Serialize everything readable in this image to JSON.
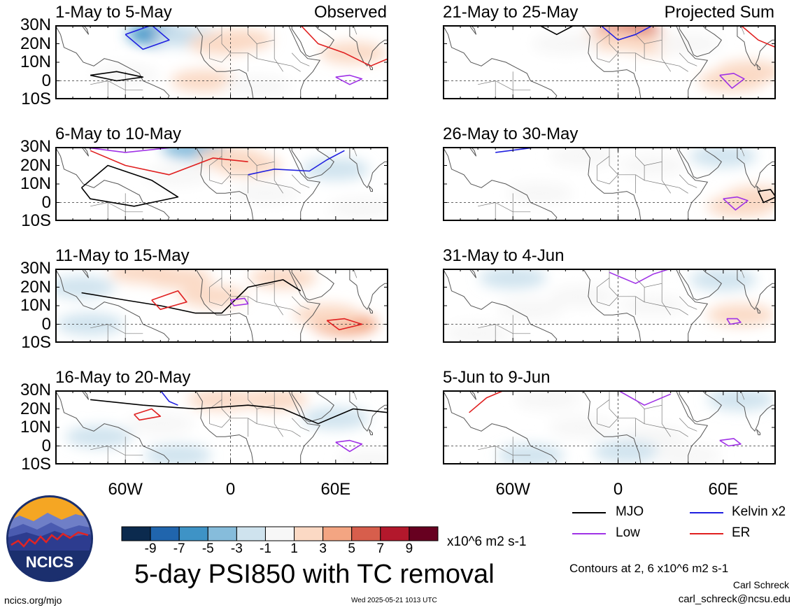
{
  "panels": [
    {
      "id": "p1",
      "title": "1-May to 5-May",
      "corner_label": "Observed",
      "col": 0,
      "row": 0,
      "shade": [
        {
          "lon": -40,
          "lat": 25,
          "v": -5
        },
        {
          "lon": -25,
          "lat": 24,
          "v": -2
        },
        {
          "lon": -5,
          "lat": 20,
          "v": 2
        },
        {
          "lon": 5,
          "lat": 22,
          "v": 3
        },
        {
          "lon": -15,
          "lat": 0,
          "v": 3
        },
        {
          "lon": -60,
          "lat": 3,
          "v": 1
        },
        {
          "lon": 70,
          "lat": 15,
          "v": 3
        },
        {
          "lon": 15,
          "lat": -3,
          "v": 1
        }
      ],
      "contours": [
        {
          "type": "MJO",
          "pts": [
            [
              -80,
              3
            ],
            [
              -65,
              5
            ],
            [
              -50,
              2
            ],
            [
              -65,
              0
            ],
            [
              -80,
              3
            ]
          ]
        },
        {
          "type": "Kelvin",
          "pts": [
            [
              -60,
              25
            ],
            [
              -45,
              30
            ],
            [
              -35,
              22
            ],
            [
              -50,
              17
            ],
            [
              -60,
              25
            ]
          ]
        },
        {
          "type": "ER",
          "pts": [
            [
              40,
              30
            ],
            [
              50,
              20
            ],
            [
              65,
              15
            ],
            [
              80,
              8
            ],
            [
              90,
              12
            ]
          ]
        },
        {
          "type": "Low",
          "pts": [
            [
              60,
              2
            ],
            [
              68,
              3
            ],
            [
              75,
              1
            ],
            [
              68,
              -2
            ],
            [
              60,
              2
            ]
          ]
        }
      ]
    },
    {
      "id": "p2",
      "title": "6-May to 10-May",
      "corner_label": "",
      "col": 0,
      "row": 1,
      "shade": [
        {
          "lon": -20,
          "lat": 29,
          "v": -3
        },
        {
          "lon": 0,
          "lat": 24,
          "v": 3
        },
        {
          "lon": 10,
          "lat": 20,
          "v": 2
        },
        {
          "lon": -30,
          "lat": 15,
          "v": 1
        },
        {
          "lon": 60,
          "lat": 18,
          "v": -2
        },
        {
          "lon": 20,
          "lat": 5,
          "v": 1
        },
        {
          "lon": 75,
          "lat": -3,
          "v": 1
        }
      ],
      "contours": [
        {
          "type": "MJO",
          "pts": [
            [
              -85,
              8
            ],
            [
              -70,
              20
            ],
            [
              -45,
              12
            ],
            [
              -30,
              3
            ],
            [
              -55,
              -2
            ],
            [
              -80,
              2
            ],
            [
              -85,
              8
            ]
          ]
        },
        {
          "type": "ER",
          "pts": [
            [
              -80,
              28
            ],
            [
              -60,
              20
            ],
            [
              -35,
              15
            ],
            [
              -10,
              24
            ],
            [
              10,
              22
            ]
          ]
        },
        {
          "type": "Kelvin",
          "pts": [
            [
              10,
              15
            ],
            [
              25,
              18
            ],
            [
              45,
              17
            ],
            [
              55,
              23
            ],
            [
              65,
              28
            ]
          ]
        },
        {
          "type": "Low",
          "pts": [
            [
              -85,
              30
            ],
            [
              -60,
              27
            ],
            [
              -30,
              30
            ]
          ]
        }
      ]
    },
    {
      "id": "p3",
      "title": "11-May to 15-May",
      "corner_label": "",
      "col": 0,
      "row": 2,
      "shade": [
        {
          "lon": -50,
          "lat": 28,
          "v": 3
        },
        {
          "lon": -30,
          "lat": 25,
          "v": 3
        },
        {
          "lon": -10,
          "lat": 15,
          "v": 2
        },
        {
          "lon": 30,
          "lat": 25,
          "v": 2
        },
        {
          "lon": 65,
          "lat": 0,
          "v": 5
        },
        {
          "lon": 55,
          "lat": 5,
          "v": 2
        },
        {
          "lon": -80,
          "lat": 0,
          "v": -2
        },
        {
          "lon": -85,
          "lat": 20,
          "v": -1
        }
      ],
      "contours": [
        {
          "type": "MJO",
          "pts": [
            [
              -85,
              17
            ],
            [
              -60,
              13
            ],
            [
              -40,
              10
            ],
            [
              -20,
              6
            ],
            [
              -5,
              6
            ],
            [
              10,
              20
            ],
            [
              30,
              24
            ],
            [
              40,
              18
            ]
          ]
        },
        {
          "type": "ER",
          "pts": [
            [
              -45,
              13
            ],
            [
              -30,
              18
            ],
            [
              -25,
              12
            ],
            [
              -40,
              8
            ],
            [
              -45,
              13
            ]
          ]
        },
        {
          "type": "ER",
          "pts": [
            [
              55,
              2
            ],
            [
              65,
              3
            ],
            [
              75,
              0
            ],
            [
              62,
              -3
            ],
            [
              55,
              2
            ]
          ]
        },
        {
          "type": "Low",
          "pts": [
            [
              0,
              13
            ],
            [
              8,
              14
            ],
            [
              10,
              11
            ],
            [
              2,
              10
            ],
            [
              0,
              13
            ]
          ]
        }
      ]
    },
    {
      "id": "p4",
      "title": "16-May to 20-May",
      "corner_label": "",
      "col": 0,
      "row": 3,
      "shade": [
        {
          "lon": -5,
          "lat": 25,
          "v": 3
        },
        {
          "lon": 25,
          "lat": 25,
          "v": 3
        },
        {
          "lon": -40,
          "lat": 12,
          "v": 1
        },
        {
          "lon": 60,
          "lat": 15,
          "v": -2
        },
        {
          "lon": -75,
          "lat": 5,
          "v": -1
        },
        {
          "lon": -30,
          "lat": -5,
          "v": -1
        },
        {
          "lon": 80,
          "lat": -8,
          "v": 1
        }
      ],
      "contours": [
        {
          "type": "MJO",
          "pts": [
            [
              -80,
              25
            ],
            [
              -50,
              22
            ],
            [
              -20,
              20
            ],
            [
              10,
              22
            ],
            [
              30,
              20
            ],
            [
              50,
              12
            ],
            [
              70,
              20
            ],
            [
              90,
              18
            ]
          ]
        },
        {
          "type": "ER",
          "pts": [
            [
              -55,
              17
            ],
            [
              -45,
              20
            ],
            [
              -40,
              16
            ],
            [
              -52,
              14
            ],
            [
              -55,
              17
            ]
          ]
        },
        {
          "type": "Low",
          "pts": [
            [
              60,
              2
            ],
            [
              68,
              3
            ],
            [
              75,
              1
            ],
            [
              68,
              -3
            ],
            [
              60,
              2
            ]
          ]
        },
        {
          "type": "Kelvin",
          "pts": [
            [
              -40,
              30
            ],
            [
              -35,
              24
            ],
            [
              -30,
              22
            ]
          ]
        }
      ]
    },
    {
      "id": "p5",
      "title": "21-May to 25-May",
      "corner_label": "Projected Sum",
      "col": 1,
      "row": 0,
      "shade": [
        {
          "lon": 5,
          "lat": 27,
          "v": 7
        },
        {
          "lon": -5,
          "lat": 22,
          "v": 3
        },
        {
          "lon": 20,
          "lat": 20,
          "v": 3
        },
        {
          "lon": -30,
          "lat": 20,
          "v": 1
        },
        {
          "lon": 65,
          "lat": 0,
          "v": 3
        },
        {
          "lon": 75,
          "lat": 5,
          "v": 2
        },
        {
          "lon": 40,
          "lat": 20,
          "v": 1
        }
      ],
      "contours": [
        {
          "type": "MJO",
          "pts": [
            [
              -45,
              30
            ],
            [
              -35,
              25
            ],
            [
              -25,
              30
            ]
          ]
        },
        {
          "type": "ER",
          "pts": [
            [
              70,
              30
            ],
            [
              80,
              22
            ],
            [
              90,
              18
            ]
          ]
        },
        {
          "type": "Kelvin",
          "pts": [
            [
              -10,
              30
            ],
            [
              0,
              22
            ],
            [
              10,
              25
            ],
            [
              20,
              30
            ]
          ]
        },
        {
          "type": "Low",
          "pts": [
            [
              58,
              3
            ],
            [
              66,
              4
            ],
            [
              72,
              1
            ],
            [
              65,
              -4
            ],
            [
              58,
              3
            ]
          ]
        }
      ]
    },
    {
      "id": "p6",
      "title": "26-May to 30-May",
      "corner_label": "",
      "col": 1,
      "row": 1,
      "shade": [
        {
          "lon": -20,
          "lat": 25,
          "v": 1
        },
        {
          "lon": 60,
          "lat": 25,
          "v": -2
        },
        {
          "lon": 20,
          "lat": 20,
          "v": 1
        },
        {
          "lon": -45,
          "lat": 5,
          "v": 1
        },
        {
          "lon": 70,
          "lat": -2,
          "v": 3
        },
        {
          "lon": 80,
          "lat": 3,
          "v": 2
        }
      ],
      "contours": [
        {
          "type": "Kelvin",
          "pts": [
            [
              -70,
              27
            ],
            [
              -45,
              30
            ],
            [
              -20,
              30
            ]
          ]
        },
        {
          "type": "MJO",
          "pts": [
            [
              80,
              6
            ],
            [
              87,
              7
            ],
            [
              90,
              3
            ],
            [
              83,
              0
            ],
            [
              80,
              6
            ]
          ]
        },
        {
          "type": "Low",
          "pts": [
            [
              60,
              2
            ],
            [
              68,
              3
            ],
            [
              74,
              1
            ],
            [
              67,
              -4
            ],
            [
              60,
              2
            ]
          ]
        }
      ]
    },
    {
      "id": "p7",
      "title": "31-May to 4-Jun",
      "corner_label": "",
      "col": 1,
      "row": 2,
      "shade": [
        {
          "lon": -60,
          "lat": 25,
          "v": -2
        },
        {
          "lon": 60,
          "lat": 24,
          "v": -2
        },
        {
          "lon": 70,
          "lat": 5,
          "v": 2
        },
        {
          "lon": -50,
          "lat": 8,
          "v": 1
        },
        {
          "lon": -20,
          "lat": 15,
          "v": 1
        },
        {
          "lon": 20,
          "lat": 10,
          "v": 1
        },
        {
          "lon": -80,
          "lat": -5,
          "v": 1
        }
      ],
      "contours": [
        {
          "type": "Low",
          "pts": [
            [
              -5,
              28
            ],
            [
              10,
              22
            ],
            [
              20,
              27
            ],
            [
              30,
              30
            ]
          ]
        },
        {
          "type": "Low",
          "pts": [
            [
              62,
              3
            ],
            [
              68,
              3
            ],
            [
              70,
              1
            ],
            [
              64,
              0
            ],
            [
              62,
              3
            ]
          ]
        }
      ]
    },
    {
      "id": "p8",
      "title": "5-Jun to 9-Jun",
      "corner_label": "",
      "col": 1,
      "row": 3,
      "shade": [
        {
          "lon": -40,
          "lat": 25,
          "v": 1
        },
        {
          "lon": 70,
          "lat": 25,
          "v": -2
        },
        {
          "lon": -20,
          "lat": 10,
          "v": 1
        },
        {
          "lon": 20,
          "lat": 5,
          "v": 1
        },
        {
          "lon": -50,
          "lat": -5,
          "v": -2
        },
        {
          "lon": 5,
          "lat": -3,
          "v": -1
        },
        {
          "lon": 40,
          "lat": -5,
          "v": 1
        }
      ],
      "contours": [
        {
          "type": "ER",
          "pts": [
            [
              -85,
              18
            ],
            [
              -75,
              26
            ],
            [
              -65,
              30
            ]
          ]
        },
        {
          "type": "Low",
          "pts": [
            [
              0,
              30
            ],
            [
              15,
              22
            ],
            [
              30,
              28
            ]
          ]
        },
        {
          "type": "Low",
          "pts": [
            [
              58,
              3
            ],
            [
              66,
              4
            ],
            [
              70,
              1
            ],
            [
              63,
              0
            ],
            [
              58,
              3
            ]
          ]
        }
      ]
    }
  ],
  "lat_labels": [
    "30N",
    "20N",
    "10N",
    "0",
    "10S"
  ],
  "lon_labels": [
    "60W",
    "0",
    "60E"
  ],
  "colorbar": {
    "colors": [
      "#0b2a4e",
      "#2065ad",
      "#3e93c6",
      "#86bcdb",
      "#cfe3ee",
      "#f7f7f7",
      "#fbd9c4",
      "#f3a582",
      "#d75e4c",
      "#b3182c",
      "#670020"
    ],
    "labels": [
      "-9",
      "-7",
      "-5",
      "-3",
      "-1",
      "1",
      "3",
      "5",
      "7",
      "9"
    ],
    "units": "x10^6 m2 s-1"
  },
  "legend": [
    {
      "name": "MJO",
      "color": "#000000"
    },
    {
      "name": "Kelvin x2",
      "color": "#1f1fe0"
    },
    {
      "name": "Low",
      "color": "#a032e6"
    },
    {
      "name": "ER",
      "color": "#e01f1f"
    }
  ],
  "main_title": "5-day PSI850 with TC removal",
  "contours_note": "Contours at 2, 6 x10^6 m2 s-1",
  "author": "Carl Schreck",
  "email": "carl_schreck@ncsu.edu",
  "site": "ncics.org/mjo",
  "timestamp": "Wed 2025-05-21 1013 UTC",
  "logo": {
    "text": "NCICS",
    "sky_color": "#f5a623",
    "ring_color": "#1b2f6e",
    "text_color": "#ffffff"
  }
}
